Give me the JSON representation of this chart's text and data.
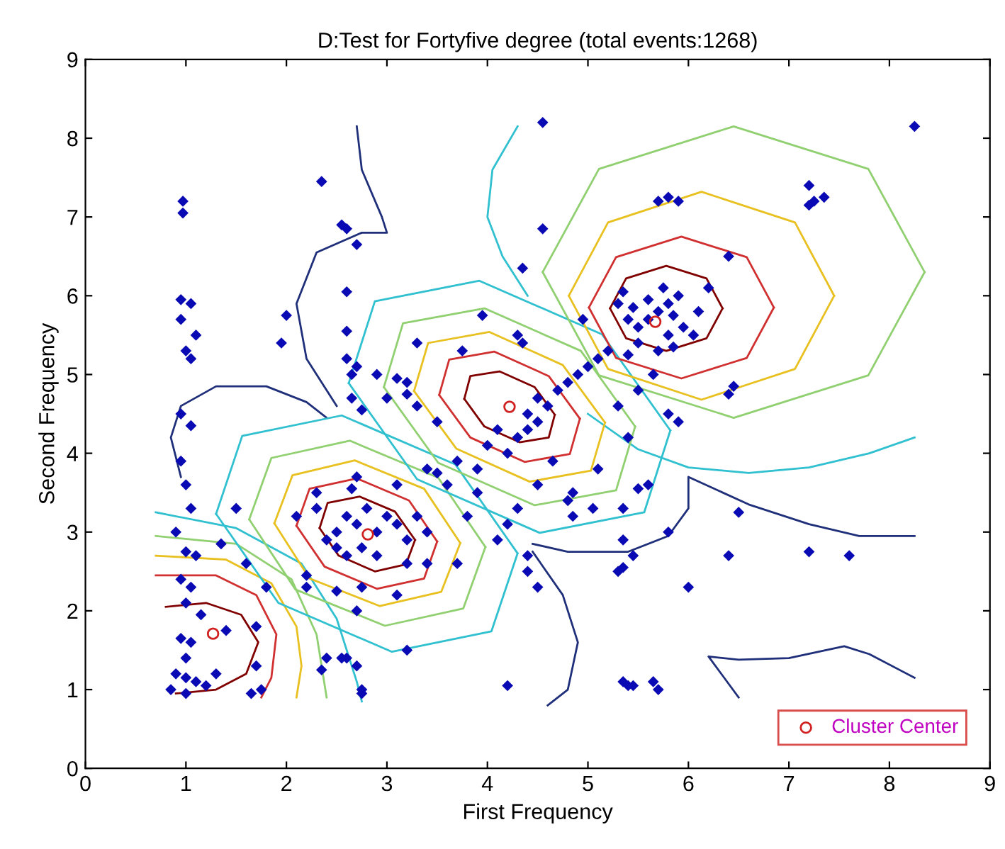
{
  "chart_data": {
    "type": "scatter",
    "title": "D:Test for Fortyfive degree (total events:1268)",
    "xlabel": "First Frequency",
    "ylabel": "Second Frequency",
    "xlim": [
      0,
      9
    ],
    "ylim": [
      0,
      9
    ],
    "xticks": [
      0,
      1,
      2,
      3,
      4,
      5,
      6,
      7,
      8,
      9
    ],
    "yticks": [
      0,
      1,
      2,
      3,
      4,
      5,
      6,
      7,
      8,
      9
    ],
    "grid": false,
    "legend": "bottom right",
    "series": [
      {
        "type": "line",
        "color": "#1f2f7a",
        "marker": "none",
        "x": [
          2.7,
          2.75,
          2.95,
          3.0,
          2.75,
          2.3,
          2.1,
          2.2,
          2.5
        ],
        "values": [
          8.15,
          7.6,
          7.0,
          6.8,
          6.8,
          6.55,
          5.9,
          5.2,
          4.6
        ]
      },
      {
        "type": "line",
        "color": "#1f2f7a",
        "marker": "none",
        "x": [
          0.95,
          0.85,
          0.95,
          1.3,
          1.8,
          2.2,
          2.4
        ],
        "values": [
          3.7,
          4.2,
          4.6,
          4.85,
          4.85,
          4.65,
          4.45
        ]
      },
      {
        "type": "line",
        "color": "#1f2f7a",
        "marker": "none",
        "x": [
          4.45,
          4.8,
          5.4,
          5.8,
          6.0,
          6.0,
          6.6,
          7.2,
          7.7,
          8.25
        ],
        "values": [
          2.85,
          2.75,
          2.75,
          2.95,
          3.3,
          3.7,
          3.35,
          3.1,
          2.95,
          2.95
        ]
      },
      {
        "type": "line",
        "color": "#1f2f7a",
        "marker": "none",
        "x": [
          4.45,
          4.75,
          4.9,
          4.8,
          4.6
        ],
        "values": [
          2.75,
          2.2,
          1.6,
          1.0,
          0.8
        ]
      },
      {
        "type": "line",
        "color": "#1f2f7a",
        "marker": "none",
        "x": [
          6.5,
          6.2,
          6.5,
          7.0,
          7.55,
          7.8,
          8.25
        ],
        "values": [
          0.9,
          1.42,
          1.38,
          1.4,
          1.55,
          1.45,
          1.15
        ]
      },
      {
        "type": "line",
        "color": "#30c0d0",
        "marker": "none",
        "x": [
          5.0,
          5.5,
          6.0,
          6.6,
          7.2,
          7.8,
          8.25
        ],
        "values": [
          4.5,
          4.05,
          3.82,
          3.75,
          3.82,
          4.0,
          4.2
        ]
      },
      {
        "type": "line",
        "color": "#30c0d0",
        "marker": "none",
        "x": [
          4.3,
          4.05,
          4.0,
          4.15,
          4.4
        ],
        "values": [
          8.15,
          7.6,
          7.0,
          6.5,
          6.0
        ]
      },
      {
        "type": "line",
        "color": "#30c0d0",
        "marker": "none",
        "x": [
          0.7,
          1.5,
          2.15,
          2.5,
          2.7,
          2.75
        ],
        "values": [
          3.25,
          3.05,
          2.6,
          1.9,
          1.1,
          0.85
        ]
      },
      {
        "type": "line",
        "color": "#90d070",
        "marker": "none",
        "x": [
          0.7,
          1.5,
          2.05,
          2.3,
          2.4
        ],
        "values": [
          2.95,
          2.85,
          2.4,
          1.7,
          0.9
        ]
      },
      {
        "type": "line",
        "color": "#e8c020",
        "marker": "none",
        "x": [
          0.7,
          1.4,
          1.85,
          2.1,
          2.15,
          2.1
        ],
        "values": [
          2.7,
          2.65,
          2.35,
          1.8,
          1.3,
          0.9
        ]
      },
      {
        "type": "line",
        "color": "#d03030",
        "marker": "none",
        "x": [
          0.7,
          1.3,
          1.7,
          1.9,
          1.85,
          1.75
        ],
        "values": [
          2.45,
          2.45,
          2.2,
          1.7,
          1.15,
          0.9
        ]
      },
      {
        "type": "line",
        "color": "#800000",
        "marker": "none",
        "x": [
          0.8,
          1.2,
          1.55,
          1.72,
          1.6,
          1.3,
          0.9
        ],
        "values": [
          2.05,
          2.1,
          1.95,
          1.6,
          1.2,
          1.0,
          0.95
        ]
      },
      {
        "type": "line",
        "color": "#30c0d0",
        "marker": "none",
        "x": [
          1.3,
          1.56,
          2.55,
          3.68,
          4.3
        ],
        "values": [
          3.23,
          4.22,
          4.48,
          3.86,
          2.73
        ]
      },
      {
        "type": "line",
        "color": "#30c0d0",
        "marker": "none",
        "x": [
          1.3,
          1.92,
          3.05,
          4.04,
          4.3
        ],
        "values": [
          3.23,
          2.1,
          1.48,
          1.74,
          2.73
        ]
      },
      {
        "type": "line",
        "color": "#90d070",
        "marker": "none",
        "x": [
          1.63,
          1.85,
          2.63,
          3.51,
          3.98
        ],
        "values": [
          3.16,
          3.94,
          4.16,
          3.69,
          2.81
        ]
      },
      {
        "type": "line",
        "color": "#90d070",
        "marker": "none",
        "x": [
          1.63,
          2.09,
          2.98,
          3.76,
          3.98
        ],
        "values": [
          3.16,
          2.27,
          1.81,
          2.03,
          2.81
        ]
      },
      {
        "type": "line",
        "color": "#e8c020",
        "marker": "none",
        "x": [
          1.88,
          2.06,
          2.68,
          3.37,
          3.73
        ],
        "values": [
          3.11,
          3.72,
          3.91,
          3.55,
          2.86
        ]
      },
      {
        "type": "line",
        "color": "#e8c020",
        "marker": "none",
        "x": [
          1.88,
          2.23,
          2.93,
          3.54,
          3.73
        ],
        "values": [
          3.11,
          2.41,
          2.06,
          2.24,
          2.86
        ]
      },
      {
        "type": "line",
        "color": "#d03030",
        "marker": "none",
        "x": [
          2.1,
          2.23,
          2.7,
          3.22,
          3.5
        ],
        "values": [
          3.08,
          3.55,
          3.68,
          3.4,
          2.88
        ]
      },
      {
        "type": "line",
        "color": "#d03030",
        "marker": "none",
        "x": [
          2.1,
          2.38,
          2.9,
          3.37,
          3.5
        ],
        "values": [
          3.08,
          2.56,
          2.28,
          2.41,
          2.88
        ]
      },
      {
        "type": "line",
        "color": "#800000",
        "marker": "none",
        "x": [
          2.33,
          2.41,
          2.73,
          3.08,
          3.28
        ],
        "values": [
          3.05,
          3.37,
          3.45,
          3.26,
          2.9
        ]
      },
      {
        "type": "line",
        "color": "#800000",
        "marker": "none",
        "x": [
          2.33,
          2.52,
          2.88,
          3.19,
          3.28
        ],
        "values": [
          3.05,
          2.7,
          2.5,
          2.59,
          2.9
        ]
      },
      {
        "type": "line",
        "color": "#30c0d0",
        "marker": "none",
        "x": [
          2.62,
          2.88,
          3.92,
          5.14,
          5.82
        ],
        "values": [
          4.89,
          5.93,
          6.19,
          5.51,
          4.29
        ]
      },
      {
        "type": "line",
        "color": "#30c0d0",
        "marker": "none",
        "x": [
          2.62,
          3.3,
          4.52,
          5.56,
          5.82
        ],
        "values": [
          4.89,
          3.67,
          2.99,
          3.25,
          4.29
        ]
      },
      {
        "type": "line",
        "color": "#90d070",
        "marker": "none",
        "x": [
          2.97,
          3.16,
          3.97,
          4.93,
          5.47
        ],
        "values": [
          4.84,
          5.65,
          5.84,
          5.3,
          4.34
        ]
      },
      {
        "type": "line",
        "color": "#90d070",
        "marker": "none",
        "x": [
          2.97,
          3.51,
          4.47,
          5.28,
          5.47
        ],
        "values": [
          4.84,
          3.88,
          3.34,
          3.53,
          4.34
        ]
      },
      {
        "type": "line",
        "color": "#e8c020",
        "marker": "none",
        "x": [
          3.27,
          3.41,
          4.02,
          4.75,
          5.17
        ],
        "values": [
          4.79,
          5.4,
          5.54,
          5.12,
          4.39
        ]
      },
      {
        "type": "line",
        "color": "#e8c020",
        "marker": "none",
        "x": [
          3.27,
          3.69,
          4.42,
          5.03,
          5.17
        ],
        "values": [
          4.79,
          4.06,
          3.64,
          3.78,
          4.39
        ]
      },
      {
        "type": "line",
        "color": "#d03030",
        "marker": "none",
        "x": [
          3.52,
          3.62,
          4.07,
          4.61,
          4.92
        ],
        "values": [
          4.74,
          5.19,
          5.29,
          4.98,
          4.44
        ]
      },
      {
        "type": "line",
        "color": "#d03030",
        "marker": "none",
        "x": [
          3.52,
          3.83,
          4.37,
          4.82,
          4.92
        ],
        "values": [
          4.74,
          4.2,
          3.89,
          3.99,
          4.44
        ]
      },
      {
        "type": "line",
        "color": "#800000",
        "marker": "none",
        "x": [
          3.77,
          3.83,
          4.12,
          4.47,
          4.67
        ],
        "values": [
          4.69,
          4.98,
          5.04,
          4.84,
          4.49
        ]
      },
      {
        "type": "line",
        "color": "#800000",
        "marker": "none",
        "x": [
          3.77,
          3.97,
          4.32,
          4.61,
          4.67
        ],
        "values": [
          4.69,
          4.34,
          4.14,
          4.2,
          4.49
        ]
      },
      {
        "type": "line",
        "color": "#90d070",
        "marker": "none",
        "x": [
          4.55,
          5.11,
          6.45,
          7.79,
          8.35
        ],
        "values": [
          6.3,
          7.61,
          8.15,
          7.61,
          6.3
        ]
      },
      {
        "type": "line",
        "color": "#90d070",
        "marker": "none",
        "x": [
          4.55,
          5.11,
          6.45,
          7.79,
          8.35
        ],
        "values": [
          6.3,
          4.99,
          4.45,
          4.99,
          6.3
        ]
      },
      {
        "type": "line",
        "color": "#e8c020",
        "marker": "none",
        "x": [
          4.81,
          5.2,
          6.13,
          7.06,
          7.45
        ],
        "values": [
          6.0,
          6.93,
          7.32,
          6.93,
          6.0
        ]
      },
      {
        "type": "line",
        "color": "#e8c020",
        "marker": "none",
        "x": [
          4.81,
          5.2,
          6.13,
          7.06,
          7.45
        ],
        "values": [
          6.0,
          5.07,
          4.68,
          5.07,
          6.0
        ]
      },
      {
        "type": "line",
        "color": "#d03030",
        "marker": "none",
        "x": [
          5.01,
          5.28,
          5.93,
          6.58,
          6.85
        ],
        "values": [
          5.85,
          6.49,
          6.75,
          6.49,
          5.85
        ]
      },
      {
        "type": "line",
        "color": "#d03030",
        "marker": "none",
        "x": [
          5.01,
          5.28,
          5.93,
          6.58,
          6.85
        ],
        "values": [
          5.85,
          5.21,
          4.95,
          5.21,
          5.85
        ]
      },
      {
        "type": "line",
        "color": "#800000",
        "marker": "none",
        "x": [
          5.22,
          5.38,
          5.78,
          6.18,
          6.34
        ],
        "values": [
          5.84,
          6.22,
          6.38,
          6.22,
          5.84
        ]
      },
      {
        "type": "line",
        "color": "#800000",
        "marker": "none",
        "x": [
          5.22,
          5.38,
          5.78,
          6.18,
          6.34
        ],
        "values": [
          5.84,
          5.46,
          5.3,
          5.46,
          5.84
        ]
      },
      {
        "color": "#0a0ab4",
        "marker": "diamond",
        "x": [
          0.97,
          0.97,
          0.95,
          1.05,
          0.95,
          1.1,
          1.0,
          1.05,
          0.95,
          1.05,
          0.95,
          1.0,
          1.05,
          0.9,
          1.0,
          1.1,
          0.95,
          1.05,
          1.0,
          1.15,
          0.95,
          1.05,
          1.0,
          0.9,
          1.0,
          1.1,
          1.2,
          0.85,
          1.0,
          1.3,
          1.4,
          1.7,
          1.7,
          1.6,
          1.8,
          1.5,
          1.35,
          1.65,
          1.75,
          2.35,
          2.55,
          2.6,
          2.7,
          2.6,
          2.6,
          2.0,
          1.95,
          2.6,
          2.65,
          2.7,
          2.65,
          2.75,
          2.9,
          3.1,
          3.2,
          3.0,
          3.2,
          3.3,
          3.5,
          3.3,
          3.75,
          3.95,
          4.3,
          4.35,
          2.5,
          2.6,
          2.7,
          2.8,
          2.9,
          3.0,
          3.1,
          2.75,
          2.6,
          2.5,
          2.9,
          3.2,
          3.3,
          3.4,
          2.4,
          2.3,
          2.3,
          2.65,
          2.7,
          3.1,
          2.2,
          2.2,
          2.1,
          2.5,
          2.75,
          3.2,
          3.4,
          3.7,
          3.1,
          2.7,
          2.4,
          2.35,
          2.6,
          2.75,
          2.7,
          2.55,
          2.75,
          3.2,
          3.6,
          3.5,
          3.4,
          3.8,
          3.9,
          4.2,
          4.3,
          4.4,
          4.5,
          4.6,
          4.1,
          4.0,
          3.7,
          3.9,
          4.4,
          4.5,
          4.7,
          4.8,
          4.9,
          5.0,
          5.1,
          5.2,
          4.65,
          4.5,
          4.3,
          4.1,
          4.2,
          4.4,
          4.5,
          4.4,
          4.2,
          4.85,
          5.1,
          5.05,
          4.8,
          5.35,
          5.35,
          5.3,
          5.35,
          5.45,
          5.5,
          5.6,
          5.8,
          6.0,
          6.4,
          7.2,
          7.6,
          6.5,
          5.35,
          5.4,
          5.45,
          5.65,
          5.7,
          4.85,
          5.5,
          5.3,
          5.4,
          5.8,
          5.9,
          5.5,
          5.6,
          5.7,
          5.8,
          5.9,
          5.4,
          5.3,
          5.45,
          5.6,
          5.75,
          5.85,
          5.95,
          6.05,
          5.5,
          5.4,
          5.7,
          5.8,
          6.1,
          5.65,
          5.85,
          6.2,
          5.35,
          4.95,
          5.7,
          5.8,
          5.9,
          7.2,
          7.25,
          7.35,
          7.2,
          6.4,
          6.4,
          6.45,
          4.55,
          8.25,
          4.35,
          4.55
        ],
        "values": [
          7.2,
          7.05,
          5.95,
          5.9,
          5.7,
          5.5,
          5.3,
          5.2,
          4.5,
          4.35,
          3.9,
          3.6,
          3.3,
          3.0,
          2.75,
          2.7,
          2.4,
          2.3,
          2.1,
          1.95,
          1.65,
          1.6,
          1.4,
          1.2,
          1.15,
          1.1,
          1.05,
          1.0,
          0.95,
          1.2,
          1.75,
          1.3,
          1.8,
          2.6,
          2.3,
          3.3,
          2.85,
          0.95,
          1.0,
          7.45,
          6.9,
          6.85,
          6.65,
          6.05,
          5.55,
          5.75,
          5.4,
          5.2,
          5.0,
          5.1,
          4.7,
          4.55,
          5.0,
          4.95,
          4.9,
          4.7,
          4.75,
          4.6,
          4.4,
          5.4,
          5.3,
          5.75,
          5.5,
          5.4,
          3.0,
          3.2,
          3.1,
          3.3,
          3.0,
          3.2,
          3.1,
          2.8,
          2.7,
          2.8,
          2.7,
          2.9,
          3.2,
          3.0,
          2.9,
          3.3,
          3.5,
          3.55,
          3.7,
          3.6,
          2.45,
          2.3,
          3.2,
          2.25,
          2.3,
          2.6,
          2.6,
          2.6,
          2.2,
          2.0,
          1.4,
          1.25,
          1.4,
          1.0,
          1.3,
          1.4,
          0.95,
          1.5,
          3.6,
          3.75,
          3.8,
          3.2,
          3.5,
          4.0,
          4.2,
          4.3,
          4.4,
          4.6,
          4.3,
          4.1,
          3.9,
          3.8,
          4.5,
          4.7,
          4.8,
          4.9,
          5.0,
          5.1,
          5.2,
          5.3,
          3.9,
          3.6,
          3.3,
          2.9,
          3.1,
          2.7,
          2.3,
          2.5,
          1.05,
          3.5,
          3.8,
          3.3,
          3.4,
          3.3,
          2.55,
          2.5,
          2.9,
          2.7,
          3.55,
          3.6,
          3.0,
          2.3,
          2.7,
          2.75,
          2.7,
          3.25,
          1.1,
          1.05,
          1.05,
          1.1,
          1.0,
          3.2,
          4.8,
          4.6,
          4.2,
          4.5,
          4.4,
          5.6,
          5.7,
          5.8,
          5.9,
          6.0,
          5.7,
          5.9,
          5.85,
          5.95,
          6.1,
          5.75,
          5.6,
          5.5,
          5.4,
          5.25,
          5.3,
          5.5,
          5.8,
          5.0,
          5.35,
          6.1,
          6.05,
          5.7,
          7.2,
          7.25,
          7.2,
          7.4,
          7.2,
          7.25,
          7.15,
          6.5,
          4.75,
          4.85,
          8.2,
          8.15,
          6.35,
          6.85
        ]
      },
      {
        "name": "Cluster Center",
        "color": "#d02020",
        "marker": "circle",
        "x": [
          1.27,
          2.81,
          4.22,
          5.67
        ],
        "values": [
          1.71,
          2.97,
          4.59,
          5.67
        ]
      }
    ]
  }
}
